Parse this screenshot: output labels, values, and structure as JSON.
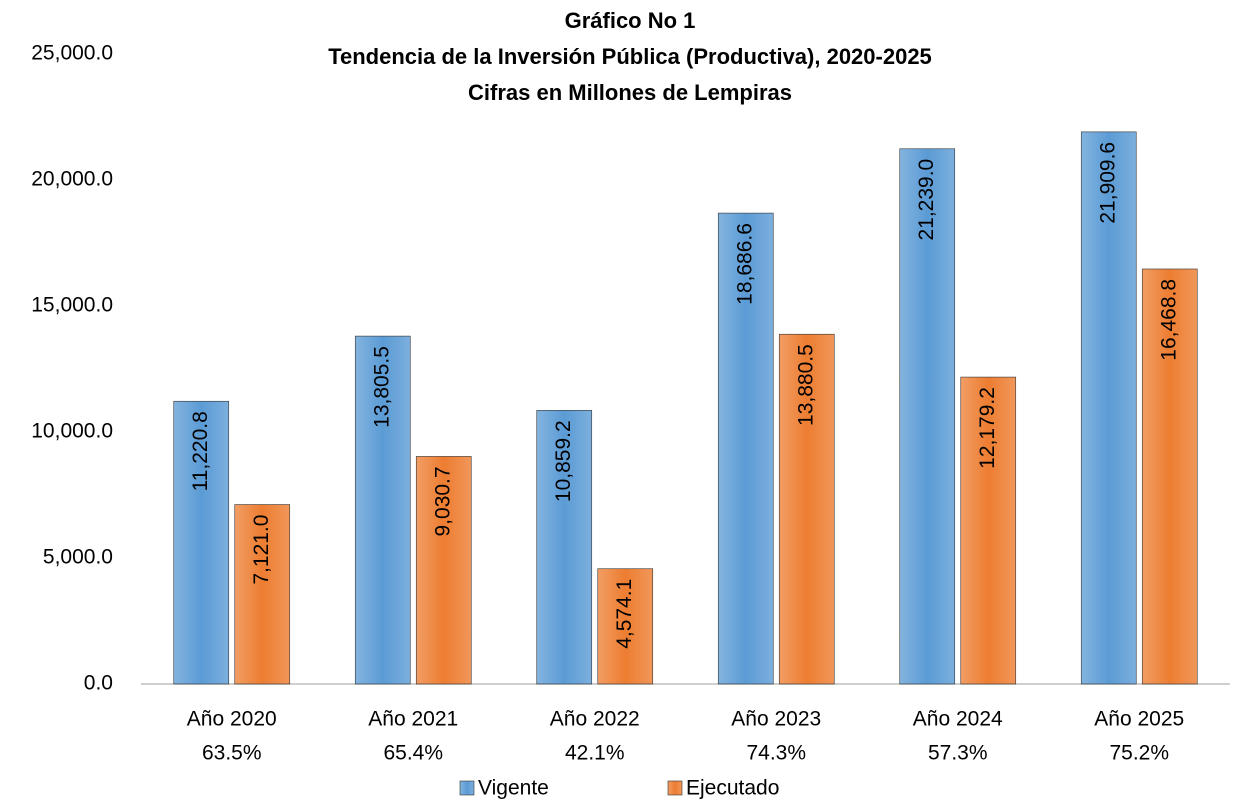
{
  "chart_data": {
    "type": "bar",
    "title_lines": [
      "Gráfico No 1",
      "Tendencia de la Inversión Pública (Productiva), 2020-2025",
      "Cifras en Millones de Lempiras"
    ],
    "categories": [
      "Año 2020",
      "Año 2021",
      "Año 2022",
      "Año 2023",
      "Año 2024",
      "Año 2025"
    ],
    "category_notes": [
      "63.5%",
      "65.4%",
      "42.1%",
      "74.3%",
      "57.3%",
      "75.2%"
    ],
    "series": [
      {
        "name": "Vigente",
        "color": "#5b9bd5",
        "values": [
          11220.8,
          13805.5,
          10859.2,
          18686.6,
          21239.0,
          21909.6
        ],
        "value_labels": [
          "11,220.8",
          "13,805.5",
          "10,859.2",
          "18,686.6",
          "21,239.0",
          "21,909.6"
        ]
      },
      {
        "name": "Ejecutado",
        "color": "#ed7d31",
        "values": [
          7121.0,
          9030.7,
          4574.1,
          13880.5,
          12179.2,
          16468.8
        ],
        "value_labels": [
          "7,121.0",
          "9,030.7",
          "4,574.1",
          "13,880.5",
          "12,179.2",
          "16,468.8"
        ]
      }
    ],
    "ylim": [
      0,
      25000
    ],
    "yticks": [
      {
        "value": 0,
        "label": "0.0"
      },
      {
        "value": 5000,
        "label": "5,000.0"
      },
      {
        "value": 10000,
        "label": "10,000.0"
      },
      {
        "value": 15000,
        "label": "15,000.0"
      },
      {
        "value": 20000,
        "label": "20,000.0"
      },
      {
        "value": 25000,
        "label": "25,000.0"
      }
    ],
    "grid": false,
    "legend": "bottom"
  }
}
